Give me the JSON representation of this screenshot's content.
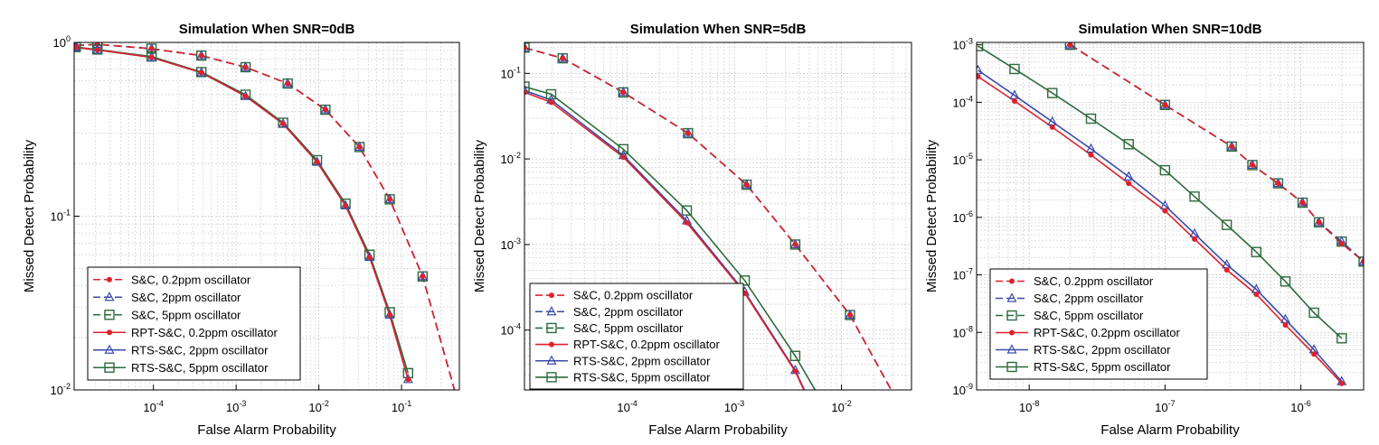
{
  "chart_data": [
    {
      "type": "line",
      "title": "Simulation When SNR=0dB",
      "xlabel": "False Alarm Probability",
      "ylabel": "Missed Detect Probability",
      "xscale": "log",
      "yscale": "log",
      "xlim": [
        1.1e-05,
        0.5
      ],
      "ylim": [
        0.01,
        1.0
      ],
      "grid": true,
      "legend_position": "bottom-left",
      "x_ticks": [
        {
          "base": "10",
          "exp": "-4"
        },
        {
          "base": "10",
          "exp": "-3"
        },
        {
          "base": "10",
          "exp": "-2"
        },
        {
          "base": "10",
          "exp": "-1"
        }
      ],
      "y_ticks": [
        {
          "base": "10",
          "exp": "-2"
        },
        {
          "base": "10",
          "exp": "-1"
        },
        {
          "base": "10",
          "exp": "0"
        }
      ],
      "series": [
        {
          "name": "S&C, 0.2ppm oscillator",
          "color": "#e0202a",
          "dash": true,
          "marker": "dot",
          "x": [
            1.15e-05,
            2.1e-05,
            9.5e-05,
            0.00038,
            0.0013,
            0.0042,
            0.012,
            0.031,
            0.072,
            0.18,
            0.45
          ],
          "y": [
            0.96,
            0.975,
            0.92,
            0.84,
            0.72,
            0.58,
            0.41,
            0.25,
            0.125,
            0.045,
            0.0095
          ]
        },
        {
          "name": "S&C, 2ppm oscillator",
          "color": "#3a4aa8",
          "dash": true,
          "marker": "triangle",
          "x": [
            1.15e-05,
            2.1e-05,
            9.5e-05,
            0.00038,
            0.0013,
            0.0042,
            0.012,
            0.031,
            0.072,
            0.18,
            0.45
          ],
          "y": [
            0.96,
            0.975,
            0.92,
            0.84,
            0.72,
            0.58,
            0.41,
            0.25,
            0.125,
            0.045,
            0.0095
          ]
        },
        {
          "name": "S&C, 5ppm oscillator",
          "color": "#2d6a3e",
          "dash": true,
          "marker": "square",
          "x": [
            1.15e-05,
            2.1e-05,
            9.5e-05,
            0.00038,
            0.0013,
            0.0042,
            0.012,
            0.031,
            0.072,
            0.18,
            0.45
          ],
          "y": [
            0.96,
            0.975,
            0.92,
            0.84,
            0.72,
            0.58,
            0.41,
            0.25,
            0.125,
            0.045,
            0.0095
          ]
        },
        {
          "name": "RPT-S&C, 0.2ppm oscillator",
          "color": "#e0202a",
          "dash": false,
          "marker": "dot",
          "x": [
            1.15e-05,
            2.1e-05,
            9.5e-05,
            0.00038,
            0.0013,
            0.0037,
            0.0095,
            0.021,
            0.041,
            0.072,
            0.12
          ],
          "y": [
            0.935,
            0.905,
            0.82,
            0.67,
            0.49,
            0.34,
            0.205,
            0.115,
            0.058,
            0.027,
            0.0115
          ]
        },
        {
          "name": "RTS-S&C, 2ppm oscillator",
          "color": "#3a4aa8",
          "dash": false,
          "marker": "triangle",
          "x": [
            1.15e-05,
            2.1e-05,
            9.5e-05,
            0.00038,
            0.0013,
            0.0037,
            0.0095,
            0.021,
            0.041,
            0.072,
            0.12
          ],
          "y": [
            0.935,
            0.905,
            0.82,
            0.67,
            0.49,
            0.34,
            0.205,
            0.115,
            0.058,
            0.027,
            0.0115
          ]
        },
        {
          "name": "RTS-S&C, 5ppm oscillator",
          "color": "#2d6a3e",
          "dash": false,
          "marker": "square",
          "x": [
            1.15e-05,
            2.1e-05,
            9.5e-05,
            0.00038,
            0.0013,
            0.0037,
            0.0095,
            0.021,
            0.041,
            0.072,
            0.12
          ],
          "y": [
            0.94,
            0.91,
            0.83,
            0.675,
            0.5,
            0.345,
            0.21,
            0.118,
            0.06,
            0.028,
            0.0125
          ]
        }
      ]
    },
    {
      "type": "line",
      "title": "Simulation When SNR=5dB",
      "xlabel": "False Alarm Probability",
      "ylabel": "Missed Detect Probability",
      "xscale": "log",
      "yscale": "log",
      "xlim": [
        1.1e-05,
        0.045
      ],
      "ylim": [
        2e-05,
        0.23
      ],
      "grid": true,
      "legend_position": "bottom-left",
      "x_ticks": [
        {
          "base": "10",
          "exp": "-4"
        },
        {
          "base": "10",
          "exp": "-3"
        },
        {
          "base": "10",
          "exp": "-2"
        }
      ],
      "y_ticks": [
        {
          "base": "10",
          "exp": "-4"
        },
        {
          "base": "10",
          "exp": "-3"
        },
        {
          "base": "10",
          "exp": "-2"
        },
        {
          "base": "10",
          "exp": "-1"
        }
      ],
      "series": [
        {
          "name": "S&C, 0.2ppm oscillator",
          "color": "#e0202a",
          "dash": true,
          "marker": "dot",
          "x": [
            1.1e-05,
            2.5e-05,
            9.2e-05,
            0.00037,
            0.0013,
            0.0037,
            0.012,
            0.034
          ],
          "y": [
            0.2,
            0.15,
            0.06,
            0.02,
            0.005,
            0.001,
            0.00015,
            1.4e-05
          ]
        },
        {
          "name": "S&C, 2ppm oscillator",
          "color": "#3a4aa8",
          "dash": true,
          "marker": "triangle",
          "x": [
            1.1e-05,
            2.5e-05,
            9.2e-05,
            0.00037,
            0.0013,
            0.0037,
            0.012,
            0.034
          ],
          "y": [
            0.2,
            0.15,
            0.06,
            0.02,
            0.005,
            0.001,
            0.00015,
            1.4e-05
          ]
        },
        {
          "name": "S&C, 5ppm oscillator",
          "color": "#2d6a3e",
          "dash": true,
          "marker": "square",
          "x": [
            1.1e-05,
            2.5e-05,
            9.2e-05,
            0.00037,
            0.0013,
            0.0037,
            0.012,
            0.034
          ],
          "y": [
            0.2,
            0.15,
            0.06,
            0.02,
            0.005,
            0.001,
            0.00015,
            1.4e-05
          ]
        },
        {
          "name": "RPT-S&C, 0.2ppm oscillator",
          "color": "#e0202a",
          "dash": false,
          "marker": "dot",
          "x": [
            1.1e-05,
            1.95e-05,
            9.2e-05,
            0.00036,
            0.00125,
            0.0037,
            0.0072
          ],
          "y": [
            0.06,
            0.046,
            0.0105,
            0.0018,
            0.00027,
            3.3e-05,
            5.5e-06
          ]
        },
        {
          "name": "RTS-S&C, 2ppm oscillator",
          "color": "#3a4aa8",
          "dash": false,
          "marker": "triangle",
          "x": [
            1.1e-05,
            1.95e-05,
            9.2e-05,
            0.00036,
            0.00125,
            0.0037,
            0.0072
          ],
          "y": [
            0.063,
            0.049,
            0.011,
            0.0019,
            0.00028,
            3.4e-05,
            5.7e-06
          ]
        },
        {
          "name": "RTS-S&C, 5ppm oscillator",
          "color": "#2d6a3e",
          "dash": false,
          "marker": "square",
          "x": [
            1.1e-05,
            1.95e-05,
            9.2e-05,
            0.00036,
            0.00125,
            0.0037,
            0.0072
          ],
          "y": [
            0.07,
            0.057,
            0.013,
            0.0025,
            0.00038,
            5e-05,
            1.2e-05
          ]
        }
      ]
    },
    {
      "type": "line",
      "title": "Simulation When SNR=10dB",
      "xlabel": "False Alarm Probability",
      "ylabel": "Missed Detect Probability",
      "xscale": "log",
      "yscale": "log",
      "xlim": [
        4.1e-09,
        2.9e-06
      ],
      "ylim": [
        1e-09,
        0.0011
      ],
      "grid": true,
      "legend_position": "bottom-left",
      "x_ticks": [
        {
          "base": "10",
          "exp": "-8"
        },
        {
          "base": "10",
          "exp": "-7"
        },
        {
          "base": "10",
          "exp": "-6"
        }
      ],
      "y_ticks": [
        {
          "base": "10",
          "exp": "-9"
        },
        {
          "base": "10",
          "exp": "-8"
        },
        {
          "base": "10",
          "exp": "-7"
        },
        {
          "base": "10",
          "exp": "-6"
        },
        {
          "base": "10",
          "exp": "-5"
        },
        {
          "base": "10",
          "exp": "-4"
        },
        {
          "base": "10",
          "exp": "-3"
        }
      ],
      "series": [
        {
          "name": "S&C, 0.2ppm oscillator",
          "color": "#e0202a",
          "dash": true,
          "marker": "dot",
          "x": [
            2e-08,
            1e-07,
            3.1e-07,
            4.4e-07,
            6.8e-07,
            1.03e-06,
            1.36e-06,
            2e-06,
            2.9e-06
          ],
          "y": [
            0.001,
            9e-05,
            1.7e-05,
            8.1e-06,
            3.9e-06,
            1.8e-06,
            8.2e-07,
            3.5e-07,
            1.7e-07
          ]
        },
        {
          "name": "S&C, 2ppm oscillator",
          "color": "#3a4aa8",
          "dash": true,
          "marker": "triangle",
          "x": [
            2e-08,
            1e-07,
            3.1e-07,
            4.4e-07,
            6.8e-07,
            1.03e-06,
            1.36e-06,
            2e-06,
            2.9e-06
          ],
          "y": [
            0.001,
            9e-05,
            1.7e-05,
            8.1e-06,
            3.9e-06,
            1.8e-06,
            8.2e-07,
            3.8e-07,
            1.7e-07
          ]
        },
        {
          "name": "S&C, 5ppm oscillator",
          "color": "#2d6a3e",
          "dash": true,
          "marker": "square",
          "x": [
            2e-08,
            1e-07,
            3.1e-07,
            4.4e-07,
            6.8e-07,
            1.03e-06,
            1.36e-06,
            2e-06,
            2.9e-06
          ],
          "y": [
            0.001,
            9e-05,
            1.7e-05,
            8.1e-06,
            3.9e-06,
            1.8e-06,
            8.2e-07,
            3.8e-07,
            1.7e-07
          ]
        },
        {
          "name": "RPT-S&C, 0.2ppm oscillator",
          "color": "#e0202a",
          "dash": false,
          "marker": "dot",
          "x": [
            4.2e-09,
            7.8e-09,
            1.48e-08,
            2.85e-08,
            5.4e-08,
            1e-07,
            1.65e-07,
            2.85e-07,
            4.7e-07,
            7.7e-07,
            1.25e-06,
            2e-06
          ],
          "y": [
            0.00028,
            0.000105,
            3.7e-05,
            1.22e-05,
            3.9e-06,
            1.3e-06,
            4.2e-07,
            1.22e-07,
            4.6e-08,
            1.35e-08,
            4.2e-09,
            1.3e-09
          ]
        },
        {
          "name": "RTS-S&C, 2ppm oscillator",
          "color": "#3a4aa8",
          "dash": false,
          "marker": "triangle",
          "x": [
            4.2e-09,
            7.8e-09,
            1.48e-08,
            2.85e-08,
            5.4e-08,
            1e-07,
            1.65e-07,
            2.85e-07,
            4.7e-07,
            7.7e-07,
            1.25e-06,
            2e-06
          ],
          "y": [
            0.00036,
            0.000132,
            4.6e-05,
            1.55e-05,
            5.1e-06,
            1.6e-06,
            5.2e-07,
            1.5e-07,
            5.6e-08,
            1.68e-08,
            5e-09,
            1.4e-09
          ]
        },
        {
          "name": "RTS-S&C, 5ppm oscillator",
          "color": "#2d6a3e",
          "dash": false,
          "marker": "square",
          "x": [
            4.2e-09,
            7.8e-09,
            1.48e-08,
            2.85e-08,
            5.4e-08,
            1e-07,
            1.65e-07,
            2.85e-07,
            4.7e-07,
            7.7e-07,
            1.25e-06,
            2e-06
          ],
          "y": [
            0.00095,
            0.00038,
            0.000145,
            5.2e-05,
            1.87e-05,
            6.6e-06,
            2.3e-06,
            7.4e-07,
            2.5e-07,
            7.7e-08,
            2.2e-08,
            7.9e-09
          ]
        }
      ]
    }
  ]
}
